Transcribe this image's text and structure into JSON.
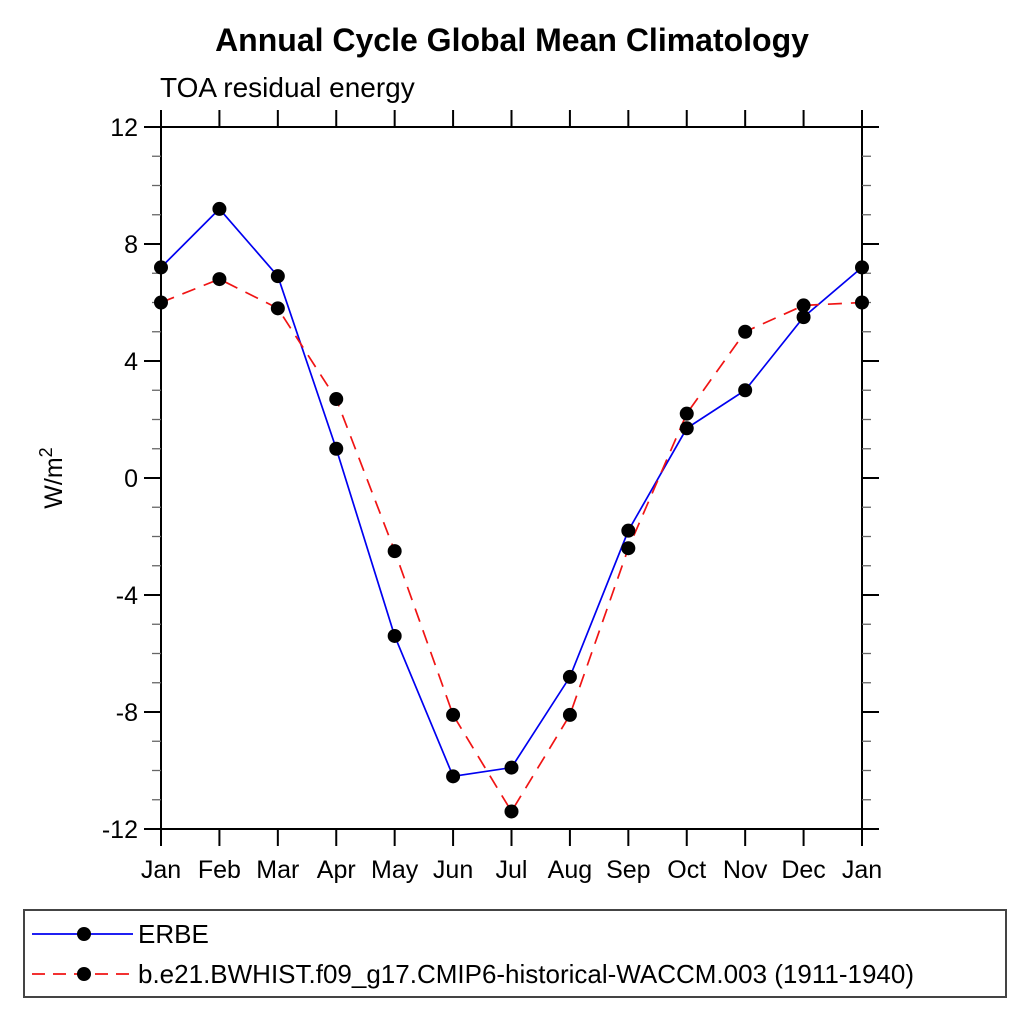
{
  "chart_data": {
    "type": "line",
    "title": "Annual Cycle Global Mean Climatology",
    "subtitle": "TOA residual energy",
    "ylabel": "W/m²",
    "xlabel": "",
    "categories": [
      "Jan",
      "Feb",
      "Mar",
      "Apr",
      "May",
      "Jun",
      "Jul",
      "Aug",
      "Sep",
      "Oct",
      "Nov",
      "Dec",
      "Jan"
    ],
    "ylim": [
      -12,
      12
    ],
    "ytick_interval": 4,
    "yminor_interval": 1,
    "ytick_labels": [
      "12",
      "8",
      "4",
      "0",
      "-4",
      "-8",
      "-12"
    ],
    "grid": false,
    "legend_position": "bottom",
    "series": [
      {
        "name": "ERBE",
        "color": "#0000f0",
        "line_style": "solid",
        "marker": "black-dot",
        "values": [
          7.2,
          9.2,
          6.9,
          1.0,
          -5.4,
          -10.2,
          -9.9,
          -6.8,
          -1.8,
          1.7,
          3.0,
          5.5,
          7.2
        ]
      },
      {
        "name": "b.e21.BWHIST.f09_g17.CMIP6-historical-WACCM.003 (1911-1940)",
        "color": "#f01414",
        "line_style": "dashed",
        "marker": "black-dot",
        "values": [
          6.0,
          6.8,
          5.8,
          2.7,
          -2.5,
          -8.1,
          -11.4,
          -8.1,
          -2.4,
          2.2,
          5.0,
          5.9,
          6.0
        ]
      }
    ],
    "marker_color": "#000000"
  }
}
